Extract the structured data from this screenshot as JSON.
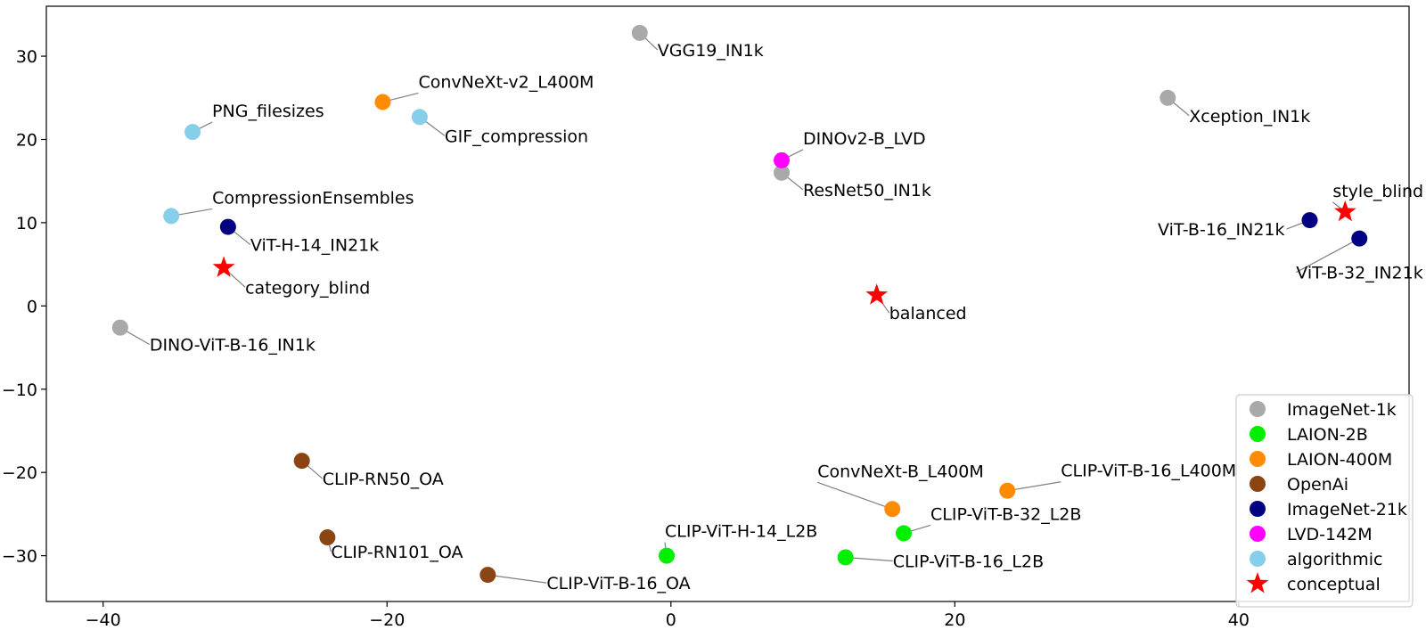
{
  "chart_data": {
    "type": "scatter",
    "title": "",
    "xlabel": "",
    "ylabel": "",
    "xlim": [
      -44,
      52
    ],
    "ylim": [
      -35.5,
      36
    ],
    "xticks": [
      -40,
      -20,
      0,
      20,
      40
    ],
    "yticks": [
      -30,
      -20,
      -10,
      0,
      10,
      20,
      30
    ],
    "xtick_labels": [
      "−40",
      "−20",
      "0",
      "20",
      "40"
    ],
    "ytick_labels": [
      "−30",
      "−20",
      "−10",
      "0",
      "10",
      "20",
      "30"
    ],
    "grid": false,
    "legend_position": "bottom-right",
    "categories": [
      {
        "name": "ImageNet-1k",
        "color": "#a9a9a9",
        "marker": "circle"
      },
      {
        "name": "LAION-2B",
        "color": "#00ee00",
        "marker": "circle"
      },
      {
        "name": "LAION-400M",
        "color": "#ff8c00",
        "marker": "circle"
      },
      {
        "name": "OpenAi",
        "color": "#8b4513",
        "marker": "circle"
      },
      {
        "name": "ImageNet-21k",
        "color": "#000080",
        "marker": "circle"
      },
      {
        "name": "LVD-142M",
        "color": "#ff00ff",
        "marker": "circle"
      },
      {
        "name": "algorithmic",
        "color": "#87ceeb",
        "marker": "circle"
      },
      {
        "name": "conceptual",
        "color": "#ff0000",
        "marker": "star"
      }
    ],
    "points": [
      {
        "label": "VGG19_IN1k",
        "category": "ImageNet-1k",
        "x": -2.2,
        "y": 32.8
      },
      {
        "label": "Xception_IN1k",
        "category": "ImageNet-1k",
        "x": 35.0,
        "y": 25.0
      },
      {
        "label": "ResNet50_IN1k",
        "category": "ImageNet-1k",
        "x": 7.8,
        "y": 16.0
      },
      {
        "label": "DINO-ViT-B-16_IN1k",
        "category": "ImageNet-1k",
        "x": -38.8,
        "y": -2.6
      },
      {
        "label": "DINOv2-B_LVD",
        "category": "LVD-142M",
        "x": 7.8,
        "y": 17.5
      },
      {
        "label": "ConvNeXt-v2_L400M",
        "category": "LAION-400M",
        "x": -20.3,
        "y": 24.5
      },
      {
        "label": "ConvNeXt-B_L400M",
        "category": "LAION-400M",
        "x": 15.6,
        "y": -24.4
      },
      {
        "label": "CLIP-ViT-B-16_L400M",
        "category": "LAION-400M",
        "x": 23.7,
        "y": -22.2
      },
      {
        "label": "PNG_filesizes",
        "category": "algorithmic",
        "x": -33.7,
        "y": 20.9
      },
      {
        "label": "GIF_compression",
        "category": "algorithmic",
        "x": -17.7,
        "y": 22.7
      },
      {
        "label": "CompressionEnsembles",
        "category": "algorithmic",
        "x": -35.2,
        "y": 10.8
      },
      {
        "label": "ViT-H-14_IN21k",
        "category": "ImageNet-21k",
        "x": -31.2,
        "y": 9.5
      },
      {
        "label": "ViT-B-16_IN21k",
        "category": "ImageNet-21k",
        "x": 45.0,
        "y": 10.3
      },
      {
        "label": "ViT-B-32_IN21k",
        "category": "ImageNet-21k",
        "x": 48.5,
        "y": 8.1
      },
      {
        "label": "style_blind",
        "category": "conceptual",
        "x": 47.5,
        "y": 11.3
      },
      {
        "label": "category_blind",
        "category": "conceptual",
        "x": -31.5,
        "y": 4.6
      },
      {
        "label": "balanced",
        "category": "conceptual",
        "x": 14.5,
        "y": 1.3
      },
      {
        "label": "CLIP-RN50_OA",
        "category": "OpenAi",
        "x": -26.0,
        "y": -18.6
      },
      {
        "label": "CLIP-RN101_OA",
        "category": "OpenAi",
        "x": -24.2,
        "y": -27.8
      },
      {
        "label": "CLIP-ViT-B-16_OA",
        "category": "OpenAi",
        "x": -12.9,
        "y": -32.3
      },
      {
        "label": "CLIP-ViT-H-14_L2B",
        "category": "LAION-2B",
        "x": -0.3,
        "y": -30.0
      },
      {
        "label": "CLIP-ViT-B-16_L2B",
        "category": "LAION-2B",
        "x": 12.3,
        "y": -30.2
      },
      {
        "label": "CLIP-ViT-B-32_L2B",
        "category": "LAION-2B",
        "x": 16.4,
        "y": -27.3
      }
    ]
  }
}
